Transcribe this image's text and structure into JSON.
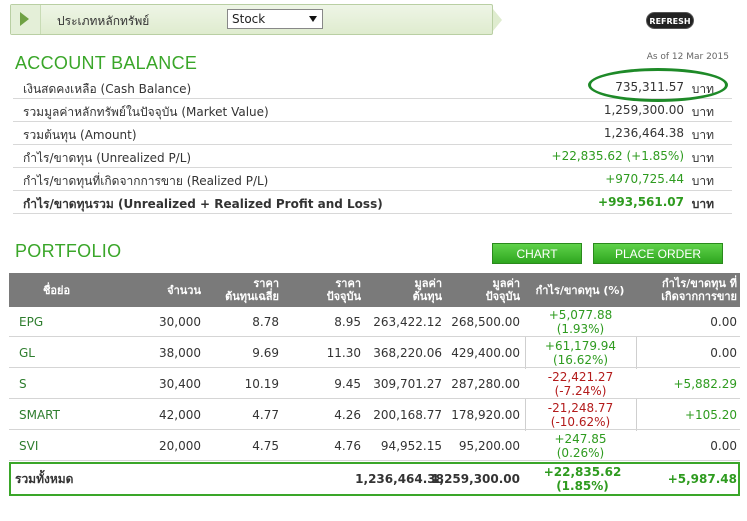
{
  "filter": {
    "label": "ประเภทหลักทรัพย์",
    "selected": "Stock"
  },
  "refresh_label": "REFRESH",
  "balance": {
    "title": "ACCOUNT BALANCE",
    "as_of": "As of 12 Mar 2015",
    "rows": [
      {
        "label": "เงินสดคงเหลือ (Cash Balance)",
        "value": "735,311.57",
        "unit": "บาท"
      },
      {
        "label": "รวมมูลค่าหลักทรัพย์ในปัจจุบัน (Market Value)",
        "value": "1,259,300.00",
        "unit": "บาท"
      },
      {
        "label": "รวมต้นทุน (Amount)",
        "value": "1,236,464.38",
        "unit": "บาท"
      },
      {
        "label": "กำไร/ขาดทุน (Unrealized P/L)",
        "value": "+22,835.62 (+1.85%)",
        "unit": "บาท"
      },
      {
        "label": "กำไร/ขาดทุนที่เกิดจากการขาย (Realized P/L)",
        "value": "+970,725.44",
        "unit": "บาท"
      },
      {
        "label": "กำไร/ขาดทุนรวม (Unrealized + Realized Profit and Loss)",
        "value": "+993,561.07",
        "unit": "บาท"
      }
    ]
  },
  "portfolio": {
    "title": "PORTFOLIO",
    "chart_button": "CHART",
    "order_button": "PLACE ORDER",
    "headers": {
      "symbol": "ชื่อย่อ",
      "volume": "จำนวน",
      "avg_cost_1": "ราคา",
      "avg_cost_2": "ต้นทุนเฉลี่ย",
      "price_1": "ราคา",
      "price_2": "ปัจจุบัน",
      "cost_1": "มูลค่า",
      "cost_2": "ต้นทุน",
      "market_1": "มูลค่า",
      "market_2": "ปัจจุบัน",
      "pl": "กำไร/ขาดทุน (%)",
      "realized_1": "กำไร/ขาดทุน ที่",
      "realized_2": "เกิดจากการขาย"
    },
    "rows": [
      {
        "symbol": "EPG",
        "volume": "30,000",
        "avg": "8.78",
        "price": "8.95",
        "cost": "263,422.12",
        "market": "268,500.00",
        "pl": "+5,077.88",
        "pct": "(1.93%)",
        "realized": "0.00"
      },
      {
        "symbol": "GL",
        "volume": "38,000",
        "avg": "9.69",
        "price": "11.30",
        "cost": "368,220.06",
        "market": "429,400.00",
        "pl": "+61,179.94",
        "pct": "(16.62%)",
        "realized": "0.00"
      },
      {
        "symbol": "S",
        "volume": "30,400",
        "avg": "10.19",
        "price": "9.45",
        "cost": "309,701.27",
        "market": "287,280.00",
        "pl": "-22,421.27",
        "pct": "(-7.24%)",
        "realized": "+5,882.29"
      },
      {
        "symbol": "SMART",
        "volume": "42,000",
        "avg": "4.77",
        "price": "4.26",
        "cost": "200,168.77",
        "market": "178,920.00",
        "pl": "-21,248.77",
        "pct": "(-10.62%)",
        "realized": "+105.20"
      },
      {
        "symbol": "SVI",
        "volume": "20,000",
        "avg": "4.75",
        "price": "4.76",
        "cost": "94,952.15",
        "market": "95,200.00",
        "pl": "+247.85",
        "pct": "(0.26%)",
        "realized": "0.00"
      }
    ],
    "total": {
      "label": "รวมทั้งหมด",
      "cost": "1,236,464.38",
      "market": "1,259,300.00",
      "pl": "+22,835.62",
      "pct": "(1.85%)",
      "realized": "+5,987.48"
    }
  }
}
